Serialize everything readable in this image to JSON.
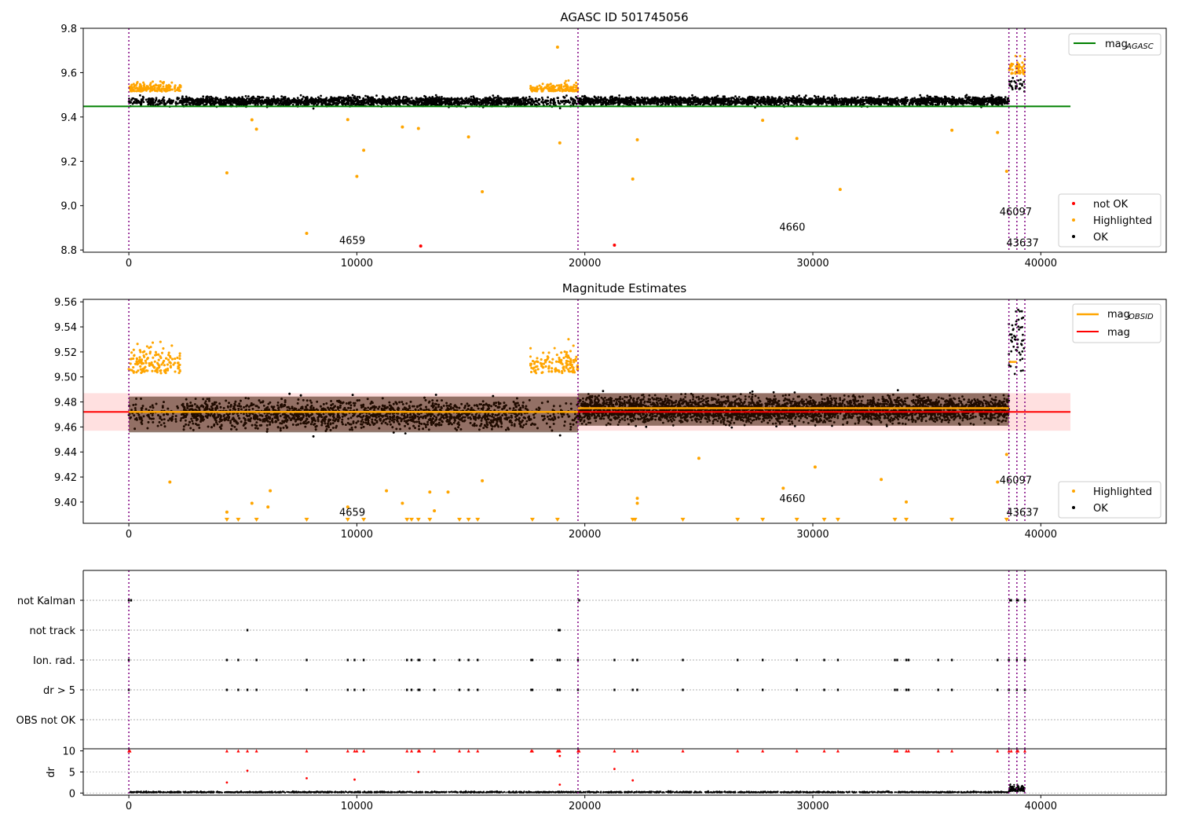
{
  "chart_data": [
    {
      "type": "scatter",
      "title": "AGASC ID 501745056",
      "xlim": [
        -2000,
        45500
      ],
      "ylim": [
        8.79,
        9.8
      ],
      "xticks": [
        0,
        10000,
        20000,
        30000,
        40000
      ],
      "yticks": [
        8.8,
        9.0,
        9.2,
        9.4,
        9.6,
        9.8
      ],
      "ytick_labels": [
        "8.8",
        "9.0",
        "9.2",
        "9.4",
        "9.6",
        "9.8"
      ],
      "mag_line": {
        "name": "mag",
        "subscript": "AGASC",
        "value": 9.448,
        "x": [
          -2000,
          41300
        ]
      },
      "obsid_boundaries": [
        0,
        19700,
        38600,
        38950,
        39300
      ],
      "obsid_labels": [
        {
          "text": "4659",
          "x": 9800,
          "y": 8.845
        },
        {
          "text": "4660",
          "x": 29100,
          "y": 8.905
        },
        {
          "text": "46097",
          "x": 38900,
          "y": 8.975
        },
        {
          "text": "43637",
          "x": 39200,
          "y": 8.835
        }
      ],
      "segments": [
        {
          "x0": 0,
          "x1": 19700,
          "level": 9.47,
          "spread": 0.02
        },
        {
          "x0": 19700,
          "x1": 38600,
          "level": 9.472,
          "spread": 0.018
        },
        {
          "x0": 38600,
          "x1": 39300,
          "level": 9.545,
          "spread": 0.035
        }
      ],
      "highlight_windows": [
        [
          0,
          2300
        ],
        [
          17600,
          19700
        ],
        [
          38600,
          39300
        ]
      ],
      "series": [
        {
          "name": "not OK",
          "color": "#ff0000",
          "points": [
            [
              12800,
              8.818
            ],
            [
              21300,
              8.822
            ]
          ]
        },
        {
          "name": "Highlighted",
          "color": "#ffa500",
          "points": [
            [
              7800,
              8.875
            ],
            [
              18800,
              9.715
            ],
            [
              18900,
              9.283
            ],
            [
              4300,
              9.148
            ],
            [
              10000,
              9.132
            ],
            [
              10300,
              9.25
            ],
            [
              15500,
              9.063
            ],
            [
              22100,
              9.12
            ],
            [
              22300,
              9.297
            ],
            [
              29300,
              9.303
            ],
            [
              31200,
              9.073
            ],
            [
              38500,
              9.155
            ],
            [
              14900,
              9.31
            ],
            [
              38100,
              9.33
            ],
            [
              5600,
              9.345
            ],
            [
              5400,
              9.387
            ],
            [
              9600,
              9.388
            ],
            [
              12000,
              9.355
            ],
            [
              12700,
              9.348
            ],
            [
              27800,
              9.385
            ],
            [
              36100,
              9.34
            ]
          ]
        },
        {
          "name": "OK",
          "color": "#000000",
          "points": []
        }
      ],
      "legend_loc": "lower right"
    },
    {
      "type": "scatter",
      "title": "Magnitude Estimates",
      "xlim": [
        -2000,
        45500
      ],
      "ylim": [
        9.383,
        9.562
      ],
      "xticks": [
        0,
        10000,
        20000,
        30000,
        40000
      ],
      "yticks": [
        9.4,
        9.42,
        9.44,
        9.46,
        9.48,
        9.5,
        9.52,
        9.54,
        9.56
      ],
      "ytick_labels": [
        "9.40",
        "9.42",
        "9.44",
        "9.46",
        "9.48",
        "9.50",
        "9.52",
        "9.54",
        "9.56"
      ],
      "mag_line": {
        "name": "mag",
        "value": 9.472,
        "band": [
          9.457,
          9.487
        ],
        "x": [
          -2000,
          41300
        ]
      },
      "mag_obsid": {
        "name": "mag",
        "subscript": "OBSID",
        "color": "#ffa500",
        "segments": [
          [
            0,
            19700,
            9.472
          ],
          [
            19700,
            38600,
            9.475
          ],
          [
            38600,
            38950,
            9.512
          ]
        ]
      },
      "obsid_boundaries": [
        0,
        19700,
        38600,
        38950,
        39300
      ],
      "obsid_labels": [
        {
          "text": "4659",
          "x": 9800,
          "y": 9.392
        },
        {
          "text": "4660",
          "x": 29100,
          "y": 9.403
        },
        {
          "text": "46097",
          "x": 38900,
          "y": 9.418
        },
        {
          "text": "43637",
          "x": 39200,
          "y": 9.392
        }
      ],
      "segments": [
        {
          "x0": 0,
          "x1": 19700,
          "level": 9.47,
          "spread": 0.011
        },
        {
          "x0": 19700,
          "x1": 38600,
          "level": 9.474,
          "spread": 0.01
        },
        {
          "x0": 38600,
          "x1": 39300,
          "level": 9.53,
          "spread": 0.025
        }
      ],
      "highlight_windows": [
        [
          0,
          2300
        ],
        [
          17600,
          19700
        ],
        [
          38600,
          39300
        ]
      ],
      "series": [
        {
          "name": "Highlighted",
          "color": "#ffa500",
          "points": [
            [
              1800,
              9.416
            ],
            [
              4300,
              9.392
            ],
            [
              5400,
              9.399
            ],
            [
              6100,
              9.396
            ],
            [
              6200,
              9.409
            ],
            [
              9600,
              9.396
            ],
            [
              11300,
              9.409
            ],
            [
              12000,
              9.399
            ],
            [
              13200,
              9.408
            ],
            [
              13400,
              9.393
            ],
            [
              14000,
              9.408
            ],
            [
              15500,
              9.417
            ],
            [
              22300,
              9.399
            ],
            [
              22300,
              9.403
            ],
            [
              25000,
              9.435
            ],
            [
              28700,
              9.411
            ],
            [
              30100,
              9.428
            ],
            [
              33000,
              9.418
            ],
            [
              34100,
              9.4
            ],
            [
              38100,
              9.416
            ],
            [
              38500,
              9.438
            ]
          ]
        },
        {
          "name": "OK",
          "color": "#000000",
          "points": []
        }
      ],
      "clipped_x": [
        4300,
        4800,
        5600,
        7800,
        9600,
        10300,
        12200,
        12400,
        12700,
        13200,
        14500,
        14900,
        15300,
        17700,
        18800,
        22100,
        22200,
        24300,
        26700,
        27800,
        29300,
        30500,
        31100,
        33600,
        34100,
        36100,
        38500
      ],
      "legend_loc": "lower right"
    },
    {
      "type": "scatter",
      "title": "",
      "xlim": [
        -2000,
        45500
      ],
      "ylim": [
        -0.5,
        6.5
      ],
      "yticks": [
        "not Kalman",
        "not track",
        "Ion. rad.",
        "dr > 5",
        "OBS not OK"
      ],
      "obsid_boundaries": [
        0,
        19700,
        38600,
        38950,
        39300
      ],
      "flags": {
        "not Kalman": [
          0,
          100,
          19750,
          38650,
          38700,
          38950,
          39000,
          39300
        ],
        "not track": [
          5200,
          18850,
          18900
        ],
        "Ion. rad.": [
          0,
          4300,
          4800,
          5600,
          7800,
          9600,
          9900,
          10300,
          12200,
          12400,
          12700,
          12750,
          13400,
          14500,
          14900,
          15300,
          17650,
          17700,
          18800,
          18900,
          19700,
          21300,
          22100,
          22300,
          24300,
          26700,
          27800,
          29300,
          30500,
          31100,
          33600,
          33700,
          34100,
          34200,
          35500,
          36100,
          38100,
          38600,
          38950,
          39300
        ],
        "dr > 5": [
          0,
          4300,
          4800,
          5200,
          5600,
          7800,
          9600,
          9900,
          10300,
          12200,
          12400,
          12700,
          12750,
          13400,
          14500,
          14900,
          15300,
          17650,
          17700,
          18800,
          18900,
          19700,
          21300,
          22100,
          22300,
          24300,
          26700,
          27800,
          29300,
          30500,
          31100,
          33600,
          33700,
          34100,
          34200,
          35500,
          36100,
          38100,
          38600,
          38950,
          39300
        ],
        "OBS not OK": []
      }
    },
    {
      "type": "scatter",
      "title": "",
      "ylabel": "dr",
      "xlim": [
        -2000,
        45500
      ],
      "ylim": [
        -0.5,
        10.5
      ],
      "xticks": [
        0,
        10000,
        20000,
        30000,
        40000
      ],
      "yticks": [
        0,
        5,
        10
      ],
      "obsid_boundaries": [
        0,
        19700,
        38600,
        38950,
        39300
      ],
      "clipped_x": [
        0,
        50,
        4300,
        4800,
        5200,
        5600,
        7800,
        9600,
        9900,
        10000,
        10300,
        12200,
        12400,
        12700,
        12750,
        13400,
        14500,
        14900,
        15300,
        17650,
        17700,
        18800,
        18850,
        18900,
        19700,
        19750,
        21300,
        22100,
        22300,
        24300,
        26700,
        27800,
        29300,
        30500,
        31100,
        33600,
        33700,
        34100,
        34200,
        35500,
        36100,
        38100,
        38600,
        38700,
        38950,
        39000,
        39300
      ],
      "outliers": [
        [
          4300,
          2.5
        ],
        [
          5200,
          5.3
        ],
        [
          7800,
          3.5
        ],
        [
          9900,
          3.2
        ],
        [
          12700,
          5.0
        ],
        [
          18900,
          2.0
        ],
        [
          18900,
          8.8
        ],
        [
          21300,
          5.7
        ],
        [
          22100,
          3.0
        ]
      ]
    }
  ]
}
